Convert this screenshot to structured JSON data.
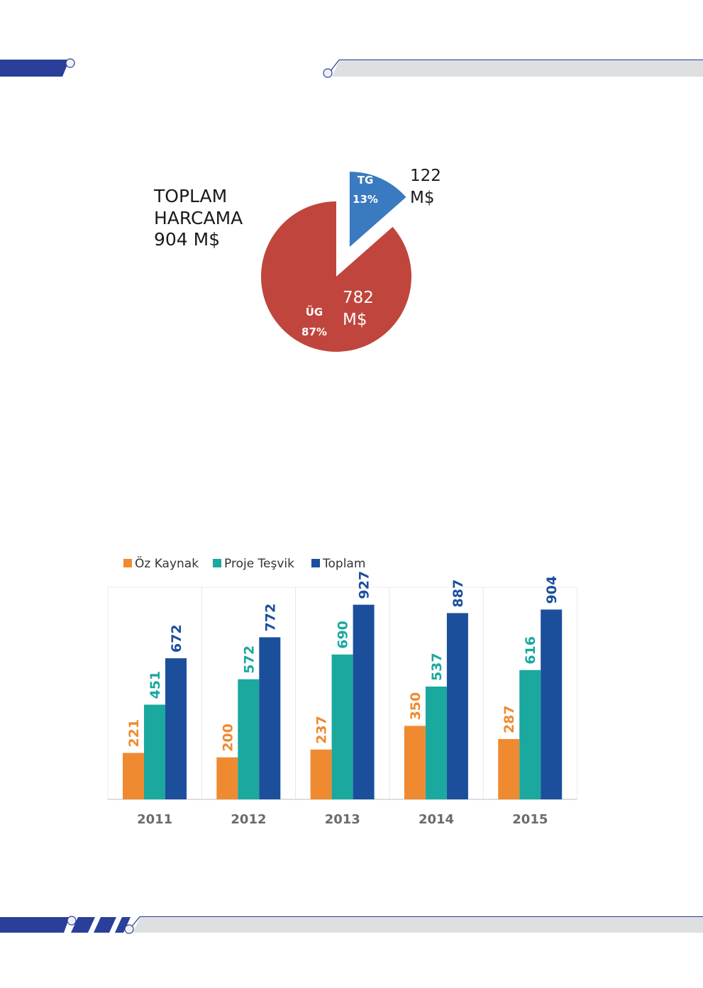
{
  "colors": {
    "navy": "#2a3f9a",
    "band_gray": "#dedfe0",
    "pie_red": "#c0453c",
    "pie_blue": "#3a7ac0",
    "oz": "#f08a30",
    "proje": "#1aa89f",
    "toplam": "#1b4f9c",
    "year_label": "#6b6b6b"
  },
  "chart_data": [
    {
      "type": "pie",
      "title_lines": [
        "TOPLAM",
        "HARCAMA",
        "904 M$"
      ],
      "slices": [
        {
          "name": "TG",
          "percent_label": "13%",
          "value": 122,
          "value_label_lines": [
            "122",
            "M$"
          ],
          "percent": 13,
          "exploded": true
        },
        {
          "name": "ÜG",
          "percent_label": "87%",
          "value": 782,
          "value_label_lines": [
            "782",
            "M$"
          ],
          "percent": 87,
          "exploded": false
        }
      ]
    },
    {
      "type": "bar",
      "categories": [
        "2011",
        "2012",
        "2013",
        "2014",
        "2015"
      ],
      "series": [
        {
          "name": "Öz Kaynak",
          "values": [
            221,
            200,
            237,
            350,
            287
          ]
        },
        {
          "name": "Proje Teşvik",
          "values": [
            451,
            572,
            690,
            537,
            616
          ]
        },
        {
          "name": "Toplam",
          "values": [
            672,
            772,
            927,
            887,
            904
          ]
        }
      ],
      "legend_position": "top-left",
      "ylim": [
        0,
        1050
      ],
      "grid": false
    }
  ]
}
